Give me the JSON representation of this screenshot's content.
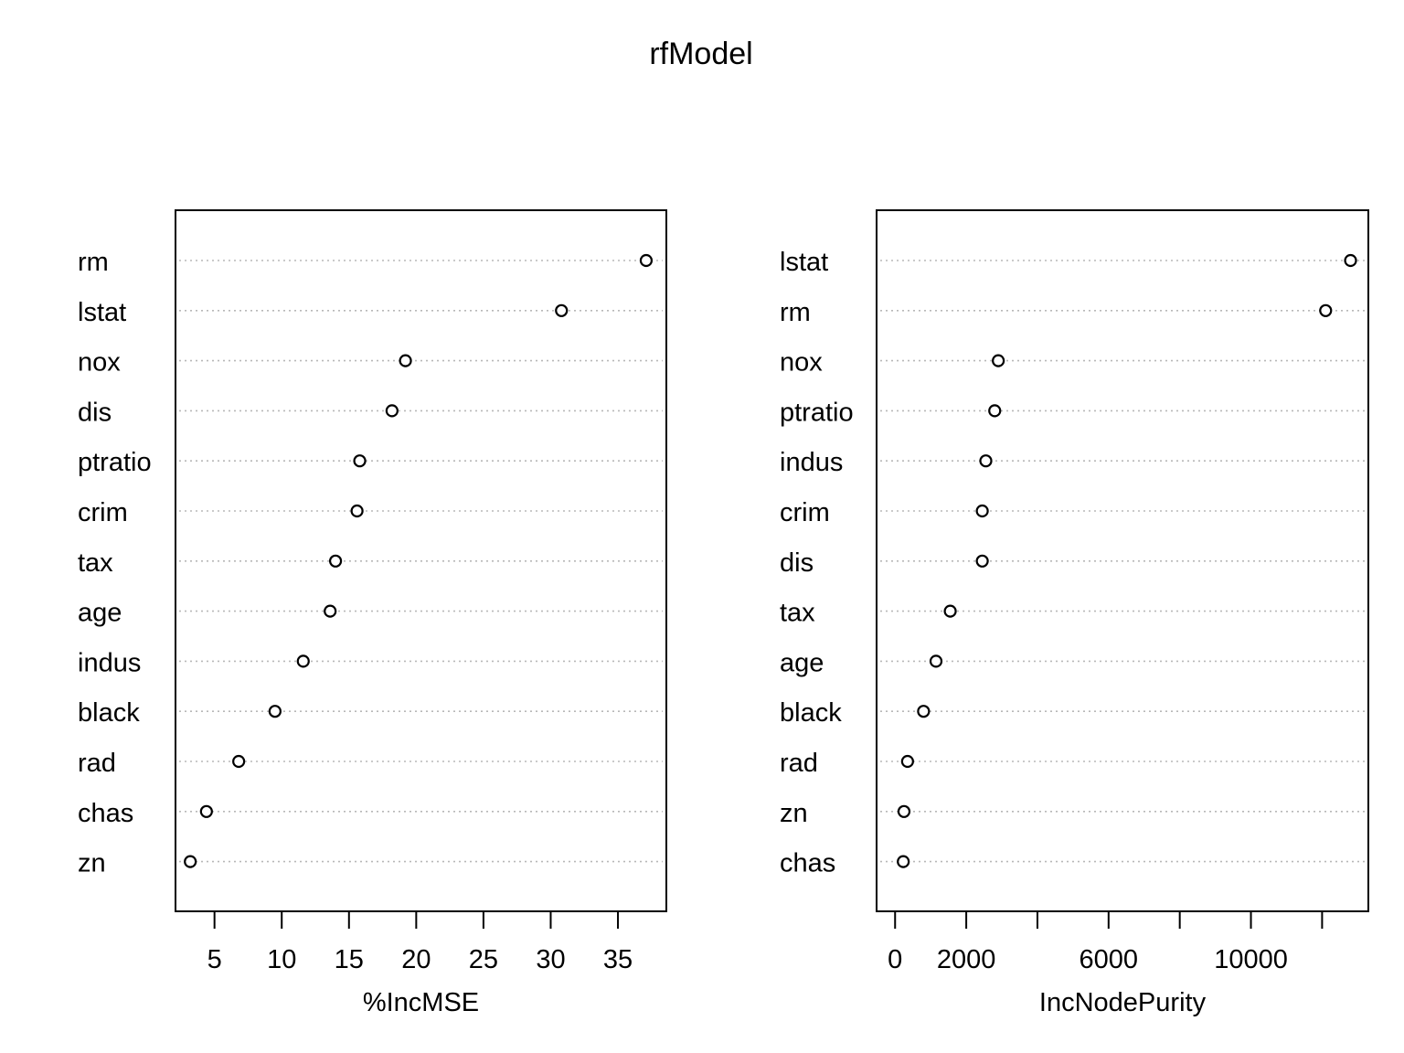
{
  "chart_data": [
    {
      "type": "scatter",
      "title": "rfModel",
      "xlabel": "%IncMSE",
      "ylabel": "",
      "categories": [
        "rm",
        "lstat",
        "nox",
        "dis",
        "ptratio",
        "crim",
        "tax",
        "age",
        "indus",
        "black",
        "rad",
        "chas",
        "zn"
      ],
      "values": [
        37.1,
        30.8,
        19.2,
        18.2,
        15.8,
        15.6,
        14.0,
        13.6,
        11.6,
        9.5,
        6.8,
        4.4,
        3.2
      ],
      "xlim": [
        2.1,
        38.6
      ],
      "xticks": [
        5,
        10,
        15,
        20,
        25,
        30,
        35
      ],
      "xticklabels": [
        "5",
        "10",
        "15",
        "20",
        "25",
        "30",
        "35"
      ],
      "grid": "dotted horizontal"
    },
    {
      "type": "scatter",
      "title": "rfModel",
      "xlabel": "IncNodePurity",
      "ylabel": "",
      "categories": [
        "lstat",
        "rm",
        "nox",
        "ptratio",
        "indus",
        "crim",
        "dis",
        "tax",
        "age",
        "black",
        "rad",
        "zn",
        "chas"
      ],
      "values": [
        12800,
        12100,
        2900,
        2800,
        2550,
        2450,
        2450,
        1550,
        1150,
        800,
        350,
        250,
        230
      ],
      "xlim": [
        -520,
        13300
      ],
      "xticks": [
        0,
        2000,
        4000,
        6000,
        8000,
        10000,
        12000
      ],
      "xticklabels": [
        "0",
        "2000",
        "",
        "6000",
        "",
        "10000",
        ""
      ],
      "grid": "dotted horizontal"
    }
  ]
}
